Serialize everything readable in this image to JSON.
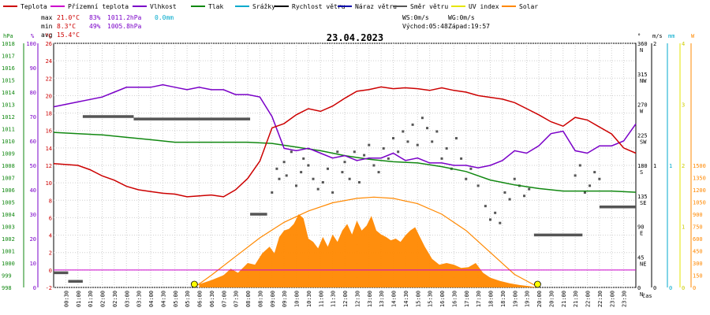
{
  "legend": [
    {
      "label": "Teplota",
      "color": "#cc0000"
    },
    {
      "label": "Přízemní teplota",
      "color": "#cc00cc"
    },
    {
      "label": "Vlhkost",
      "color": "#7a00c8"
    },
    {
      "label": "Tlak",
      "color": "#118811"
    },
    {
      "label": "Srážky",
      "color": "#00aacc"
    },
    {
      "label": "Rychlost větru",
      "color": "#000000"
    },
    {
      "label": "Náraz větru",
      "color": "#0000aa"
    },
    {
      "label": "Směr větru",
      "color": "#555555"
    },
    {
      "label": "UV index",
      "color": "#e6e600"
    },
    {
      "label": "Solar",
      "color": "#ff8800"
    }
  ],
  "stats": {
    "max_label": "max",
    "max_temp": "21.0°C",
    "max_hum": "83%",
    "max_press": "1011.2hPa",
    "rain": "0.0mm",
    "min_label": "min",
    "min_temp": "8.3°C",
    "min_hum": "49%",
    "min_press": "1005.8hPa",
    "avg_label": "avg",
    "avg_temp": "15.4°C",
    "ws": "WS:0m/s",
    "wg": "WG:0m/s",
    "sunrise": "Východ:05:48",
    "sunset": "Západ:19:57"
  },
  "chart_data": {
    "type": "line",
    "title": "23.04.2023",
    "xlabel": "čas",
    "x_ticks": [
      "00:30",
      "01:00",
      "01:30",
      "02:00",
      "02:30",
      "03:00",
      "03:30",
      "04:00",
      "04:30",
      "05:00",
      "05:30",
      "06:00",
      "06:30",
      "07:00",
      "07:30",
      "08:00",
      "08:30",
      "09:00",
      "09:30",
      "10:00",
      "10:30",
      "11:00",
      "11:30",
      "12:00",
      "12:30",
      "13:00",
      "13:30",
      "14:00",
      "14:30",
      "15:00",
      "15:30",
      "16:00",
      "16:30",
      "17:00",
      "17:30",
      "18:00",
      "18:30",
      "19:00",
      "19:30",
      "20:00",
      "20:30",
      "21:00",
      "21:30",
      "22:00",
      "22:30",
      "23:00",
      "23:30"
    ],
    "axes": {
      "pressure": {
        "unit": "hPa",
        "range": [
          998,
          1018
        ],
        "ticks": [
          998,
          999,
          1000,
          1001,
          1002,
          1003,
          1004,
          1005,
          1006,
          1007,
          1008,
          1009,
          1010,
          1011,
          1012,
          1013,
          1014,
          1015,
          1016,
          1017,
          1018
        ]
      },
      "humidity": {
        "unit": "%",
        "range": [
          0,
          100
        ],
        "ticks": [
          0,
          10,
          20,
          30,
          40,
          50,
          60,
          70,
          80,
          90,
          100
        ]
      },
      "temperature": {
        "unit": "°C",
        "range": [
          -2,
          26
        ],
        "ticks": [
          -2,
          0,
          2,
          4,
          6,
          8,
          10,
          12,
          14,
          16,
          18,
          20,
          22,
          24,
          26
        ]
      },
      "wind_dir": {
        "unit": "°",
        "ticks": [
          {
            "v": 0,
            "l": "0"
          },
          {
            "v": 45,
            "l": "45"
          },
          {
            "v": 90,
            "l": "90"
          },
          {
            "v": 135,
            "l": "135"
          },
          {
            "v": 180,
            "l": "180"
          },
          {
            "v": 225,
            "l": "225"
          },
          {
            "v": 270,
            "l": "270"
          },
          {
            "v": 315,
            "l": "315"
          },
          {
            "v": 360,
            "l": "360"
          }
        ],
        "compass": [
          "N",
          "NE",
          "E",
          "SE",
          "S",
          "SW",
          "W",
          "NW",
          "N"
        ]
      },
      "wind_speed": {
        "unit": "m/s",
        "ticks": [
          0,
          1,
          2
        ]
      },
      "rain": {
        "unit": "mm",
        "ticks": [
          0,
          1
        ]
      },
      "uv": {
        "unit": "",
        "ticks": [
          0,
          1,
          2,
          3,
          4
        ]
      },
      "solar": {
        "unit": "W",
        "ticks": [
          0,
          150,
          300,
          450,
          600,
          750,
          900,
          1050,
          1200,
          1350,
          1500
        ]
      }
    },
    "series": [
      {
        "name": "Teplota",
        "axis": "temperature",
        "color": "#cc0000",
        "x": [
          0,
          1,
          1.5,
          2,
          2.5,
          3,
          3.5,
          4,
          4.5,
          5,
          5.5,
          6,
          6.5,
          7,
          7.5,
          8,
          8.5,
          9,
          9.5,
          10,
          10.5,
          11,
          11.5,
          12,
          12.5,
          13,
          13.5,
          14,
          14.5,
          15,
          15.5,
          16,
          16.5,
          17,
          17.5,
          18,
          18.5,
          19,
          19.5,
          20,
          20.5,
          21,
          21.5,
          22,
          22.5,
          23,
          23.5,
          24
        ],
        "y": [
          12.2,
          12,
          11.5,
          10.8,
          10.3,
          9.6,
          9.2,
          9,
          8.8,
          8.7,
          8.4,
          8.5,
          8.6,
          8.4,
          9.2,
          10.5,
          12.5,
          16.3,
          16.8,
          17.8,
          18.5,
          18.2,
          18.8,
          19.7,
          20.5,
          20.7,
          21,
          20.8,
          20.9,
          20.8,
          20.6,
          20.9,
          20.6,
          20.4,
          20,
          19.8,
          19.6,
          19.2,
          18.5,
          17.8,
          17,
          16.5,
          17.5,
          17.2,
          16.4,
          15.6,
          14,
          13.4
        ]
      },
      {
        "name": "Přízemní teplota",
        "axis": "temperature",
        "color": "#cc00cc",
        "x": [
          0,
          24
        ],
        "y": [
          0,
          0
        ]
      },
      {
        "name": "Vlhkost",
        "axis": "humidity",
        "color": "#7a00c8",
        "x": [
          0,
          1,
          1.5,
          2,
          2.5,
          3,
          3.5,
          4,
          4.5,
          5,
          5.5,
          6,
          6.5,
          7,
          7.5,
          8,
          8.5,
          9,
          9.5,
          10,
          10.5,
          11,
          11.5,
          12,
          12.5,
          13,
          13.5,
          14,
          14.5,
          15,
          15.5,
          16,
          16.5,
          17,
          17.5,
          18,
          18.5,
          19,
          19.5,
          20,
          20.5,
          21,
          21.5,
          22,
          22.5,
          23,
          23.5,
          24
        ],
        "y": [
          74,
          76,
          77,
          78,
          80,
          82,
          82,
          82,
          83,
          82,
          81,
          82,
          81,
          81,
          79,
          79,
          78,
          70,
          57,
          56,
          57,
          55,
          53,
          54,
          52,
          53,
          53,
          55,
          52,
          53,
          51,
          51,
          50,
          50,
          49,
          50,
          52,
          56,
          55,
          58,
          63,
          64,
          56,
          55,
          58,
          58,
          60,
          67
        ]
      },
      {
        "name": "Tlak",
        "axis": "pressure",
        "color": "#118811",
        "x": [
          0,
          1,
          2,
          3,
          4,
          5,
          6,
          7,
          8,
          9,
          10,
          11,
          12,
          13,
          14,
          15,
          16,
          17,
          18,
          19,
          20,
          21,
          22,
          23,
          24
        ],
        "y": [
          1010.7,
          1010.6,
          1010.5,
          1010.3,
          1010.1,
          1009.9,
          1009.9,
          1009.9,
          1009.9,
          1009.8,
          1009.5,
          1009.2,
          1008.8,
          1008.5,
          1008.3,
          1008.2,
          1007.9,
          1007.5,
          1006.8,
          1006.4,
          1006.1,
          1005.9,
          1005.9,
          1005.9,
          1005.8
        ]
      },
      {
        "name": "Rychlost větru",
        "axis": "wind_speed",
        "color": "#555555",
        "segments": [
          {
            "x0": 0,
            "x1": 0.6,
            "y": 0.12
          },
          {
            "x0": 0.6,
            "x1": 1.2,
            "y": 0.05
          },
          {
            "x0": 1.2,
            "x1": 3.3,
            "y": 1.4
          },
          {
            "x0": 3.3,
            "x1": 8.1,
            "y": 1.38
          },
          {
            "x0": 8.1,
            "x1": 8.8,
            "y": 0.6
          },
          {
            "x0": 19.8,
            "x1": 21.8,
            "y": 0.43
          },
          {
            "x0": 22.5,
            "x1": 24,
            "y": 0.66
          }
        ]
      },
      {
        "name": "Solar",
        "axis": "solar",
        "color": "#ff8800",
        "x": [
          6,
          6.5,
          7,
          7.3,
          7.6,
          8,
          8.3,
          8.6,
          8.9,
          9.1,
          9.3,
          9.5,
          9.7,
          9.9,
          10.1,
          10.3,
          10.5,
          10.7,
          10.9,
          11.1,
          11.3,
          11.5,
          11.7,
          11.9,
          12.1,
          12.3,
          12.5,
          12.7,
          12.9,
          13.1,
          13.3,
          13.5,
          13.7,
          13.9,
          14.1,
          14.3,
          14.5,
          14.7,
          14.9,
          15.1,
          15.3,
          15.6,
          15.9,
          16.2,
          16.5,
          16.8,
          17.1,
          17.4,
          17.7,
          18,
          18.4,
          18.8,
          19.2,
          19.6,
          20
        ],
        "y": [
          40,
          90,
          150,
          230,
          180,
          300,
          280,
          420,
          500,
          420,
          620,
          700,
          720,
          780,
          900,
          850,
          600,
          560,
          480,
          620,
          500,
          650,
          560,
          700,
          780,
          650,
          820,
          700,
          760,
          880,
          700,
          650,
          620,
          580,
          600,
          560,
          640,
          700,
          740,
          620,
          500,
          350,
          280,
          300,
          280,
          240,
          250,
          300,
          180,
          120,
          80,
          50,
          30,
          15,
          0
        ]
      },
      {
        "name": "Teoretické záření",
        "axis": "solar",
        "color": "#ff8800",
        "x": [
          5.8,
          6.5,
          7.5,
          8.5,
          9.5,
          10.5,
          11.5,
          12.5,
          13.2,
          14,
          15,
          16,
          17,
          18,
          19,
          20
        ],
        "y": [
          0,
          150,
          380,
          610,
          800,
          940,
          1040,
          1095,
          1110,
          1095,
          1030,
          900,
          700,
          430,
          160,
          0
        ]
      },
      {
        "name": "Směr větru",
        "axis": "wind_dir",
        "color": "#555555",
        "mode": "points",
        "x": [
          9.0,
          9.2,
          9.3,
          9.5,
          9.6,
          9.8,
          10.0,
          10.2,
          10.3,
          10.5,
          10.7,
          10.9,
          11.1,
          11.3,
          11.5,
          11.7,
          11.9,
          12.0,
          12.2,
          12.4,
          12.6,
          12.8,
          13.0,
          13.2,
          13.4,
          13.6,
          13.8,
          14.0,
          14.2,
          14.4,
          14.6,
          14.8,
          15.0,
          15.2,
          15.4,
          15.6,
          15.8,
          16.0,
          16.2,
          16.4,
          16.6,
          16.8,
          17.0,
          17.2,
          17.5,
          17.8,
          18.0,
          18.2,
          18.4,
          18.6,
          18.8,
          19.0,
          19.2,
          19.4,
          19.6,
          21.5,
          21.7,
          21.9,
          22.1,
          22.3,
          22.5
        ],
        "y": [
          140,
          175,
          160,
          185,
          165,
          200,
          150,
          170,
          190,
          180,
          160,
          145,
          155,
          175,
          140,
          200,
          170,
          185,
          160,
          200,
          155,
          195,
          210,
          180,
          170,
          205,
          190,
          220,
          200,
          230,
          215,
          240,
          210,
          250,
          235,
          215,
          230,
          190,
          205,
          175,
          220,
          190,
          160,
          175,
          150,
          120,
          100,
          110,
          95,
          140,
          130,
          160,
          150,
          135,
          145,
          165,
          180,
          140,
          150,
          170,
          160
        ]
      },
      {
        "name": "Náraz větru",
        "axis": "wind_speed",
        "color": "#0000aa",
        "x": [
          0,
          24
        ],
        "y": [
          0,
          0
        ]
      }
    ],
    "markers": [
      {
        "name": "sunrise",
        "x": 5.8,
        "color": "#ffff00"
      },
      {
        "name": "sunset",
        "x": 19.95,
        "color": "#ffff00"
      }
    ]
  }
}
